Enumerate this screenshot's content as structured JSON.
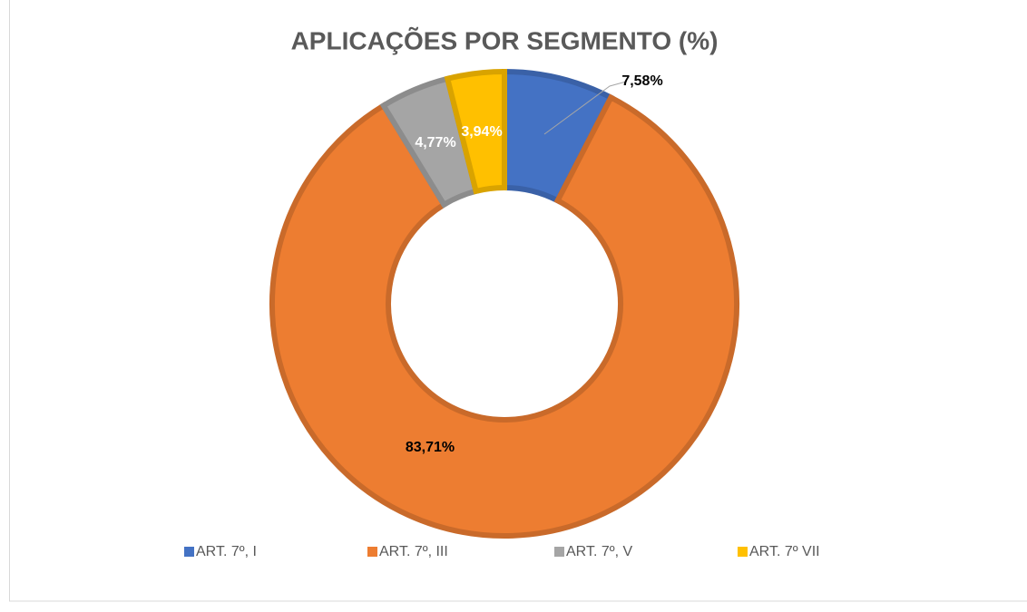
{
  "chart_data": {
    "type": "donut",
    "title": "APLICAÇÕES POR SEGMENTO (%)",
    "categories": [
      "ART. 7º, I",
      "ART. 7º, III",
      "ART. 7º, V",
      "ART. 7º VII"
    ],
    "values": [
      7.58,
      83.71,
      4.77,
      3.94
    ],
    "value_labels": [
      "7,58%",
      "83,71%",
      "4,77%",
      "3,94%"
    ],
    "colors": [
      "#4472c4",
      "#ed7d31",
      "#a5a5a5",
      "#ffc000"
    ],
    "legend": "bottom"
  }
}
